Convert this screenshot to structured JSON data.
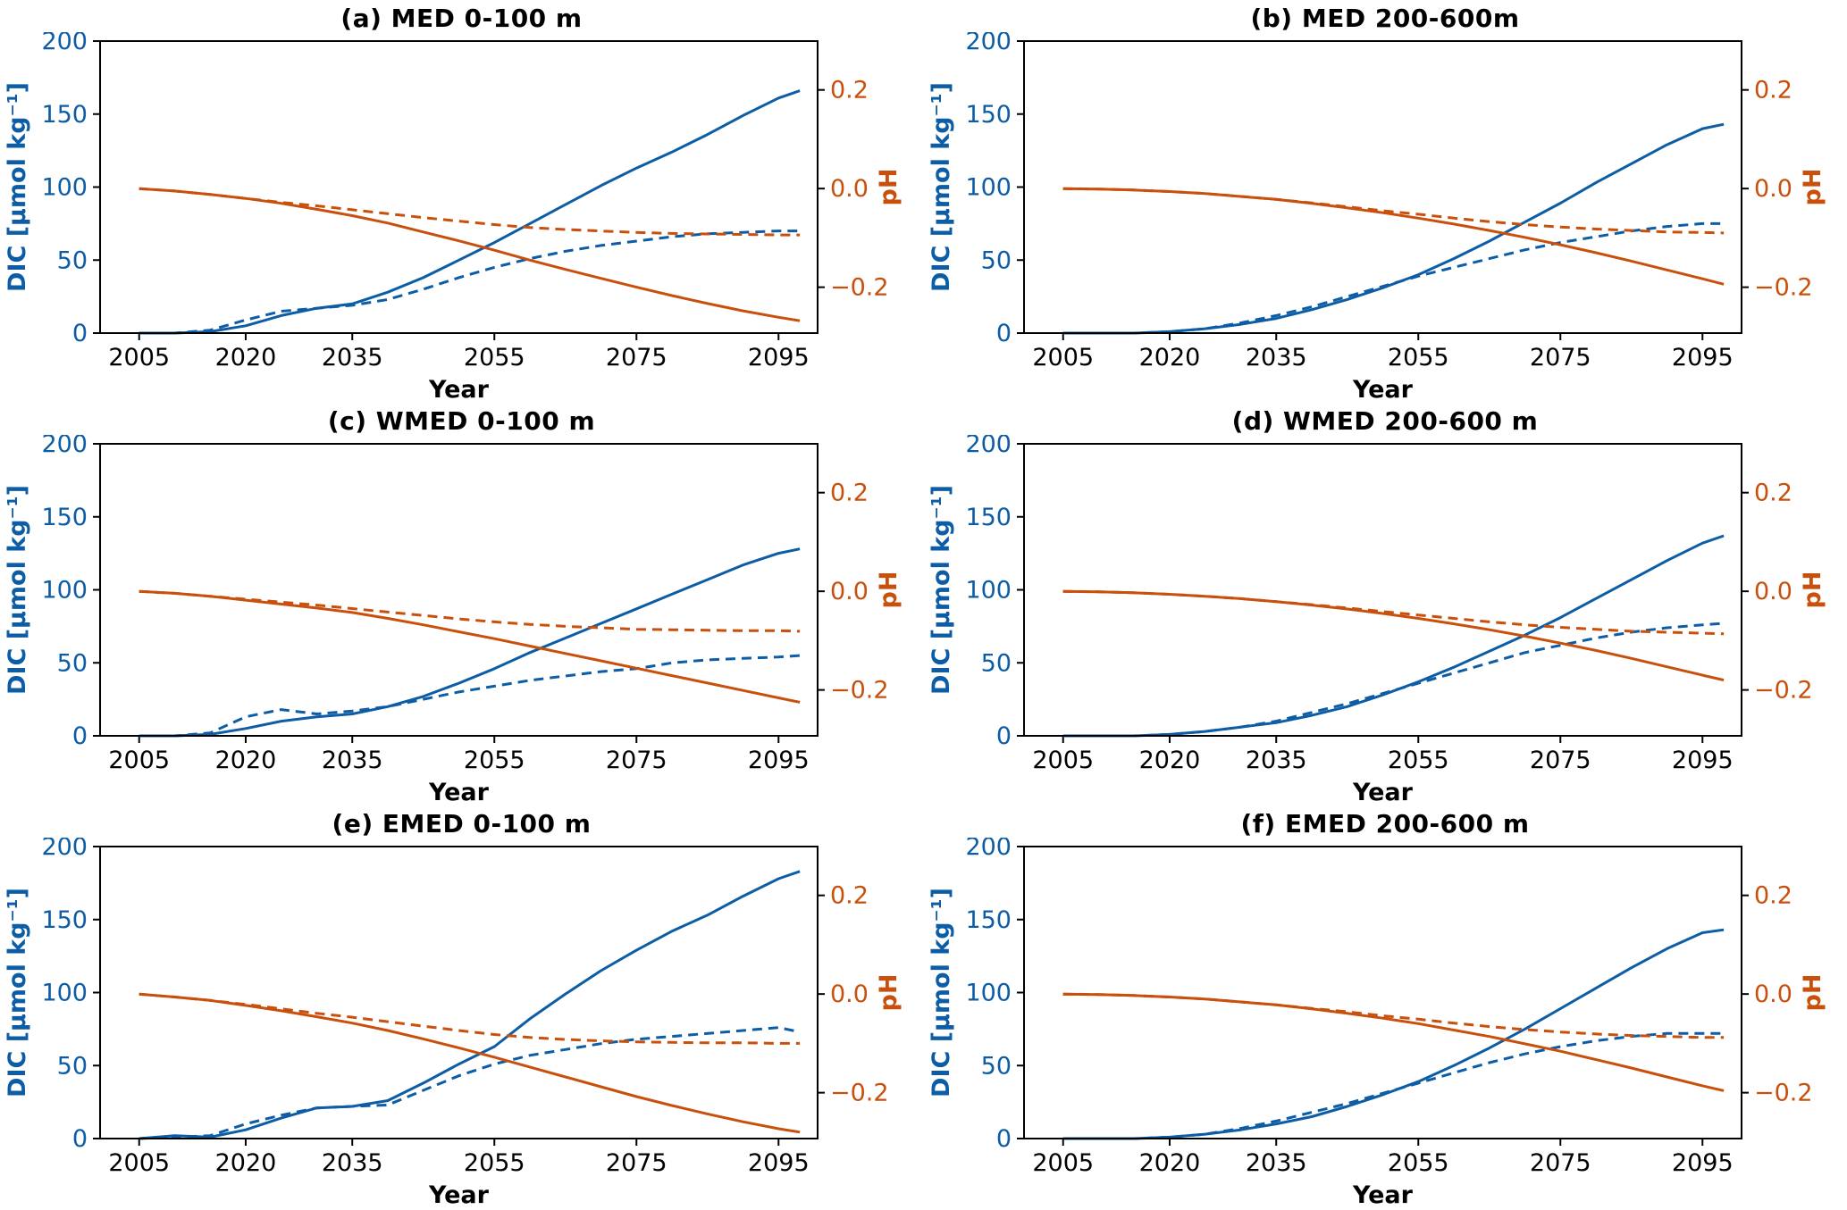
{
  "style": {
    "blue": "#0c5da5",
    "orange": "#c9500c",
    "axis_color": "#000000",
    "background": "#ffffff"
  },
  "chart_data": [
    {
      "id": "a",
      "type": "line",
      "title": "(a) MED 0-100 m",
      "xlabel": "Year",
      "ylabel_left": "DIC [μmol kg⁻¹]",
      "ylabel_right": "pH",
      "xlim": [
        1999.5,
        2100.5
      ],
      "ylim_left": [
        0,
        200
      ],
      "ylim_right": [
        -0.293,
        0.299
      ],
      "xticks": [
        2005,
        2020,
        2035,
        2055,
        2075,
        2095
      ],
      "yticks_left": [
        0,
        50,
        100,
        150,
        200
      ],
      "yticks_right": [
        -0.2,
        0.0,
        0.2
      ],
      "grid": false,
      "legend": "none",
      "x": [
        2005,
        2010,
        2015,
        2020,
        2025,
        2030,
        2035,
        2040,
        2045,
        2050,
        2055,
        2060,
        2065,
        2070,
        2075,
        2080,
        2085,
        2090,
        2095,
        2098
      ],
      "series": [
        {
          "name": "DIC solid",
          "axis": "left",
          "style": "solid",
          "color": "#0c5da5",
          "values": [
            0,
            0,
            1,
            5,
            12,
            17,
            20,
            28,
            38,
            50,
            62,
            75,
            88,
            101,
            113,
            124,
            136,
            149,
            161,
            166
          ]
        },
        {
          "name": "DIC dashed",
          "axis": "left",
          "style": "dashed",
          "color": "#0c5da5",
          "values": [
            0,
            0,
            2,
            9,
            15,
            17,
            19,
            23,
            30,
            38,
            45,
            51,
            56,
            60,
            63,
            66,
            68,
            69,
            70,
            70
          ]
        },
        {
          "name": "pH solid",
          "axis": "right",
          "style": "solid",
          "color": "#c9500c",
          "values": [
            0.0,
            -0.005,
            -0.012,
            -0.02,
            -0.03,
            -0.042,
            -0.055,
            -0.07,
            -0.088,
            -0.106,
            -0.125,
            -0.145,
            -0.164,
            -0.182,
            -0.2,
            -0.217,
            -0.233,
            -0.248,
            -0.261,
            -0.268
          ]
        },
        {
          "name": "pH dashed",
          "axis": "right",
          "style": "dashed",
          "color": "#c9500c",
          "values": [
            0.0,
            -0.005,
            -0.012,
            -0.02,
            -0.028,
            -0.035,
            -0.043,
            -0.051,
            -0.059,
            -0.066,
            -0.073,
            -0.079,
            -0.083,
            -0.086,
            -0.089,
            -0.091,
            -0.092,
            -0.093,
            -0.094,
            -0.094
          ]
        }
      ]
    },
    {
      "id": "b",
      "type": "line",
      "title": "(b) MED 200-600m",
      "xlabel": "Year",
      "ylabel_left": "DIC [μmol kg⁻¹]",
      "ylabel_right": "pH",
      "xlim": [
        1999.5,
        2100.5
      ],
      "ylim_left": [
        0,
        200
      ],
      "ylim_right": [
        -0.293,
        0.299
      ],
      "xticks": [
        2005,
        2020,
        2035,
        2055,
        2075,
        2095
      ],
      "yticks_left": [
        0,
        50,
        100,
        150,
        200
      ],
      "yticks_right": [
        -0.2,
        0.0,
        0.2
      ],
      "grid": false,
      "legend": "none",
      "x": [
        2005,
        2010,
        2015,
        2020,
        2025,
        2030,
        2035,
        2040,
        2045,
        2050,
        2055,
        2060,
        2065,
        2070,
        2075,
        2080,
        2085,
        2090,
        2095,
        2098
      ],
      "series": [
        {
          "name": "DIC solid",
          "axis": "left",
          "style": "solid",
          "color": "#0c5da5",
          "values": [
            0,
            0,
            0,
            1,
            3,
            6,
            10,
            16,
            23,
            31,
            40,
            51,
            63,
            76,
            89,
            103,
            116,
            129,
            140,
            143
          ]
        },
        {
          "name": "DIC dashed",
          "axis": "left",
          "style": "dashed",
          "color": "#0c5da5",
          "values": [
            0,
            0,
            0,
            1,
            3,
            7,
            12,
            18,
            25,
            32,
            39,
            45,
            51,
            57,
            62,
            66,
            70,
            73,
            75,
            75
          ]
        },
        {
          "name": "pH solid",
          "axis": "right",
          "style": "solid",
          "color": "#c9500c",
          "values": [
            0.0,
            -0.001,
            -0.003,
            -0.006,
            -0.01,
            -0.016,
            -0.022,
            -0.03,
            -0.039,
            -0.049,
            -0.06,
            -0.072,
            -0.085,
            -0.099,
            -0.114,
            -0.13,
            -0.147,
            -0.165,
            -0.183,
            -0.194
          ]
        },
        {
          "name": "pH dashed",
          "axis": "right",
          "style": "dashed",
          "color": "#c9500c",
          "values": [
            0.0,
            -0.001,
            -0.003,
            -0.006,
            -0.01,
            -0.016,
            -0.022,
            -0.029,
            -0.037,
            -0.045,
            -0.052,
            -0.06,
            -0.067,
            -0.073,
            -0.078,
            -0.082,
            -0.085,
            -0.088,
            -0.089,
            -0.09
          ]
        }
      ]
    },
    {
      "id": "c",
      "type": "line",
      "title": "(c) WMED 0-100 m",
      "xlabel": "Year",
      "ylabel_left": "DIC [μmol kg⁻¹]",
      "ylabel_right": "pH",
      "xlim": [
        1999.5,
        2100.5
      ],
      "ylim_left": [
        0,
        200
      ],
      "ylim_right": [
        -0.293,
        0.299
      ],
      "xticks": [
        2005,
        2020,
        2035,
        2055,
        2075,
        2095
      ],
      "yticks_left": [
        0,
        50,
        100,
        150,
        200
      ],
      "yticks_right": [
        -0.2,
        0.0,
        0.2
      ],
      "grid": false,
      "legend": "none",
      "x": [
        2005,
        2010,
        2015,
        2020,
        2025,
        2030,
        2035,
        2040,
        2045,
        2050,
        2055,
        2060,
        2065,
        2070,
        2075,
        2080,
        2085,
        2090,
        2095,
        2098
      ],
      "series": [
        {
          "name": "DIC solid",
          "axis": "left",
          "style": "solid",
          "color": "#0c5da5",
          "values": [
            0,
            0,
            1,
            5,
            10,
            13,
            15,
            20,
            27,
            36,
            46,
            57,
            67,
            77,
            87,
            97,
            107,
            117,
            125,
            128
          ]
        },
        {
          "name": "DIC dashed",
          "axis": "left",
          "style": "dashed",
          "color": "#0c5da5",
          "values": [
            0,
            0,
            2,
            13,
            18,
            15,
            17,
            20,
            25,
            30,
            34,
            38,
            41,
            44,
            46,
            50,
            52,
            53,
            54,
            55
          ]
        },
        {
          "name": "pH solid",
          "axis": "right",
          "style": "solid",
          "color": "#c9500c",
          "values": [
            0.0,
            -0.004,
            -0.01,
            -0.018,
            -0.026,
            -0.034,
            -0.043,
            -0.055,
            -0.068,
            -0.082,
            -0.096,
            -0.111,
            -0.126,
            -0.141,
            -0.156,
            -0.171,
            -0.186,
            -0.201,
            -0.216,
            -0.225
          ]
        },
        {
          "name": "pH dashed",
          "axis": "right",
          "style": "dashed",
          "color": "#c9500c",
          "values": [
            0.0,
            -0.004,
            -0.01,
            -0.016,
            -0.022,
            -0.028,
            -0.035,
            -0.042,
            -0.049,
            -0.056,
            -0.062,
            -0.067,
            -0.071,
            -0.074,
            -0.077,
            -0.078,
            -0.079,
            -0.08,
            -0.08,
            -0.081
          ]
        }
      ]
    },
    {
      "id": "d",
      "type": "line",
      "title": "(d) WMED 200-600 m",
      "xlabel": "Year",
      "ylabel_left": "DIC [μmol kg⁻¹]",
      "ylabel_right": "pH",
      "xlim": [
        1999.5,
        2100.5
      ],
      "ylim_left": [
        0,
        200
      ],
      "ylim_right": [
        -0.293,
        0.299
      ],
      "xticks": [
        2005,
        2020,
        2035,
        2055,
        2075,
        2095
      ],
      "yticks_left": [
        0,
        50,
        100,
        150,
        200
      ],
      "yticks_right": [
        -0.2,
        0.0,
        0.2
      ],
      "grid": false,
      "legend": "none",
      "x": [
        2005,
        2010,
        2015,
        2020,
        2025,
        2030,
        2035,
        2040,
        2045,
        2050,
        2055,
        2060,
        2065,
        2070,
        2075,
        2080,
        2085,
        2090,
        2095,
        2098
      ],
      "series": [
        {
          "name": "DIC solid",
          "axis": "left",
          "style": "solid",
          "color": "#0c5da5",
          "values": [
            0,
            0,
            0,
            1,
            3,
            6,
            9,
            14,
            20,
            28,
            37,
            47,
            58,
            69,
            81,
            94,
            107,
            120,
            132,
            137
          ]
        },
        {
          "name": "DIC dashed",
          "axis": "left",
          "style": "dashed",
          "color": "#0c5da5",
          "values": [
            0,
            0,
            0,
            1,
            3,
            6,
            10,
            16,
            22,
            29,
            36,
            43,
            50,
            57,
            62,
            67,
            71,
            74,
            76,
            77
          ]
        },
        {
          "name": "pH solid",
          "axis": "right",
          "style": "solid",
          "color": "#c9500c",
          "values": [
            0.0,
            -0.001,
            -0.003,
            -0.006,
            -0.01,
            -0.015,
            -0.021,
            -0.028,
            -0.036,
            -0.045,
            -0.055,
            -0.066,
            -0.078,
            -0.091,
            -0.105,
            -0.12,
            -0.136,
            -0.153,
            -0.17,
            -0.18
          ]
        },
        {
          "name": "pH dashed",
          "axis": "right",
          "style": "dashed",
          "color": "#c9500c",
          "values": [
            0.0,
            -0.001,
            -0.003,
            -0.006,
            -0.01,
            -0.015,
            -0.021,
            -0.027,
            -0.034,
            -0.041,
            -0.048,
            -0.055,
            -0.062,
            -0.068,
            -0.073,
            -0.077,
            -0.081,
            -0.083,
            -0.085,
            -0.086
          ]
        }
      ]
    },
    {
      "id": "e",
      "type": "line",
      "title": "(e) EMED 0-100 m",
      "xlabel": "Year",
      "ylabel_left": "DIC [μmol kg⁻¹]",
      "ylabel_right": "pH",
      "xlim": [
        1999.5,
        2100.5
      ],
      "ylim_left": [
        0,
        200
      ],
      "ylim_right": [
        -0.293,
        0.299
      ],
      "xticks": [
        2005,
        2020,
        2035,
        2055,
        2075,
        2095
      ],
      "yticks_left": [
        0,
        50,
        100,
        150,
        200
      ],
      "yticks_right": [
        -0.2,
        0.0,
        0.2
      ],
      "grid": false,
      "legend": "none",
      "x": [
        2005,
        2010,
        2015,
        2020,
        2025,
        2030,
        2035,
        2040,
        2045,
        2050,
        2055,
        2060,
        2065,
        2070,
        2075,
        2080,
        2085,
        2090,
        2095,
        2098
      ],
      "series": [
        {
          "name": "DIC solid",
          "axis": "left",
          "style": "solid",
          "color": "#0c5da5",
          "values": [
            0,
            2,
            1,
            6,
            14,
            21,
            22,
            26,
            38,
            51,
            63,
            82,
            99,
            115,
            129,
            142,
            153,
            166,
            178,
            183
          ]
        },
        {
          "name": "DIC dashed",
          "axis": "left",
          "style": "dashed",
          "color": "#0c5da5",
          "values": [
            0,
            1,
            2,
            10,
            16,
            21,
            22,
            23,
            33,
            43,
            51,
            57,
            61,
            65,
            68,
            70,
            72,
            74,
            76,
            73
          ]
        },
        {
          "name": "pH solid",
          "axis": "right",
          "style": "solid",
          "color": "#c9500c",
          "values": [
            0.0,
            -0.006,
            -0.013,
            -0.023,
            -0.034,
            -0.046,
            -0.059,
            -0.074,
            -0.091,
            -0.109,
            -0.128,
            -0.148,
            -0.168,
            -0.188,
            -0.208,
            -0.226,
            -0.243,
            -0.259,
            -0.273,
            -0.28
          ]
        },
        {
          "name": "pH dashed",
          "axis": "right",
          "style": "dashed",
          "color": "#c9500c",
          "values": [
            0.0,
            -0.006,
            -0.013,
            -0.021,
            -0.03,
            -0.039,
            -0.047,
            -0.056,
            -0.065,
            -0.074,
            -0.082,
            -0.088,
            -0.092,
            -0.095,
            -0.097,
            -0.098,
            -0.099,
            -0.099,
            -0.1,
            -0.1
          ]
        }
      ]
    },
    {
      "id": "f",
      "type": "line",
      "title": "(f) EMED 200-600 m",
      "xlabel": "Year",
      "ylabel_left": "DIC [μmol kg⁻¹]",
      "ylabel_right": "pH",
      "xlim": [
        1999.5,
        2100.5
      ],
      "ylim_left": [
        0,
        200
      ],
      "ylim_right": [
        -0.293,
        0.299
      ],
      "xticks": [
        2005,
        2020,
        2035,
        2055,
        2075,
        2095
      ],
      "yticks_left": [
        0,
        50,
        100,
        150,
        200
      ],
      "yticks_right": [
        -0.2,
        0.0,
        0.2
      ],
      "grid": false,
      "legend": "none",
      "x": [
        2005,
        2010,
        2015,
        2020,
        2025,
        2030,
        2035,
        2040,
        2045,
        2050,
        2055,
        2060,
        2065,
        2070,
        2075,
        2080,
        2085,
        2090,
        2095,
        2098
      ],
      "series": [
        {
          "name": "DIC solid",
          "axis": "left",
          "style": "solid",
          "color": "#0c5da5",
          "values": [
            0,
            0,
            0,
            1,
            3,
            6,
            10,
            15,
            22,
            30,
            39,
            50,
            62,
            75,
            89,
            103,
            117,
            130,
            141,
            143
          ]
        },
        {
          "name": "DIC dashed",
          "axis": "left",
          "style": "dashed",
          "color": "#0c5da5",
          "values": [
            0,
            0,
            0,
            1,
            3,
            7,
            12,
            18,
            24,
            31,
            38,
            45,
            52,
            58,
            63,
            67,
            70,
            72,
            72,
            72
          ]
        },
        {
          "name": "pH solid",
          "axis": "right",
          "style": "solid",
          "color": "#c9500c",
          "values": [
            0.0,
            -0.001,
            -0.003,
            -0.006,
            -0.01,
            -0.016,
            -0.022,
            -0.03,
            -0.039,
            -0.049,
            -0.06,
            -0.073,
            -0.086,
            -0.101,
            -0.116,
            -0.133,
            -0.15,
            -0.168,
            -0.186,
            -0.196
          ]
        },
        {
          "name": "pH dashed",
          "axis": "right",
          "style": "dashed",
          "color": "#c9500c",
          "values": [
            0.0,
            -0.001,
            -0.003,
            -0.006,
            -0.01,
            -0.016,
            -0.022,
            -0.029,
            -0.036,
            -0.044,
            -0.051,
            -0.059,
            -0.066,
            -0.072,
            -0.077,
            -0.081,
            -0.084,
            -0.086,
            -0.088,
            -0.088
          ]
        }
      ]
    }
  ]
}
